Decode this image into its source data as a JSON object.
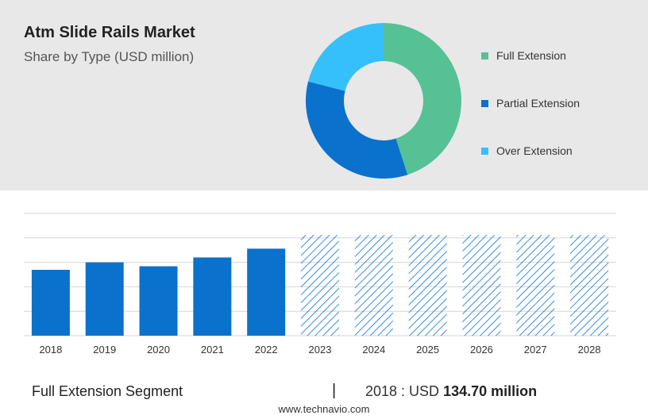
{
  "header": {
    "title": "Atm Slide Rails Market",
    "subtitle": "Share by Type (USD million)"
  },
  "donut": {
    "type": "pie",
    "segments": [
      {
        "label": "Full Extension",
        "share": 0.45,
        "color": "#55c195"
      },
      {
        "label": "Partial Extension",
        "share": 0.34,
        "color": "#0a72cc"
      },
      {
        "label": "Over Extension",
        "share": 0.21,
        "color": "#35c0fb"
      }
    ]
  },
  "chart_data": {
    "type": "bar",
    "categories": [
      "2018",
      "2019",
      "2020",
      "2021",
      "2022",
      "2023",
      "2024",
      "2025",
      "2026",
      "2027",
      "2028"
    ],
    "values": [
      134.7,
      150,
      142,
      160,
      178,
      null,
      null,
      null,
      null,
      null,
      null
    ],
    "forecast_years": [
      "2023",
      "2024",
      "2025",
      "2026",
      "2027",
      "2028"
    ],
    "bar_color": "#0a72cc",
    "forecast_pattern_color": "#0a72cc",
    "ylim": [
      0,
      250
    ],
    "grid": true
  },
  "footer": {
    "segment_label": "Full Extension Segment",
    "separator": "|",
    "value_prefix": "2018 : USD",
    "value_bold": "134.70 million",
    "source": "www.technavio.com"
  }
}
